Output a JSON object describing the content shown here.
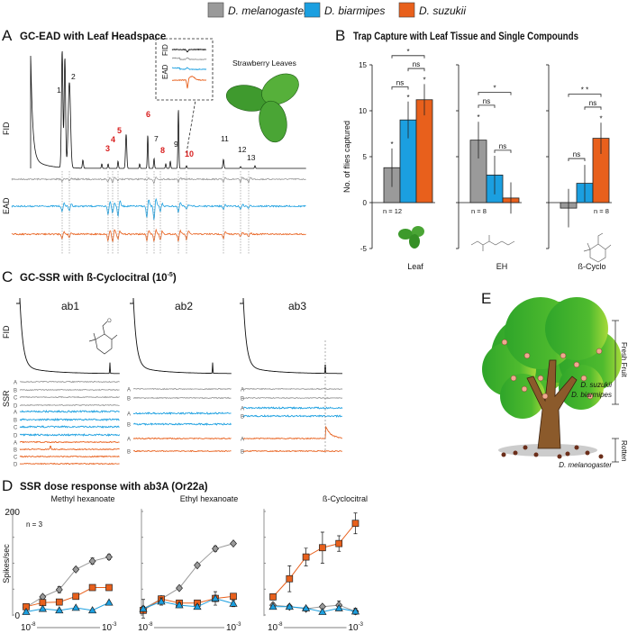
{
  "legend": [
    {
      "label": "D. melanogaster",
      "color": "#9a9a9a"
    },
    {
      "label": "D. biarmipes",
      "color": "#1b9fe0"
    },
    {
      "label": "D. suzukii",
      "color": "#e8601c"
    }
  ],
  "panelA": {
    "letter": "A",
    "title": "GC-EAD with Leaf Headspace",
    "fid_label": "FID",
    "ead_label": "EAD",
    "inset_fid_label": "FID",
    "inset_ead_label": "EAD",
    "image_caption": "Strawberry Leaves",
    "peaks": [
      "1",
      "2",
      "3",
      "4",
      "5",
      "6",
      "7",
      "8",
      "9",
      "10",
      "11",
      "12",
      "13"
    ],
    "highlighted_peaks": [
      "3",
      "4",
      "5",
      "6",
      "8",
      "10"
    ]
  },
  "panelB": {
    "letter": "B",
    "title": "Trap Capture with Leaf Tissue and Single Compounds"
  },
  "panelC": {
    "letter": "C",
    "title": "GC-SSR with ß-Cyclocitral (10",
    "title_exponent": "-5",
    "title_close": ")",
    "fid_label": "FID",
    "ssr_label": "SSR",
    "sensilla": [
      {
        "name": "ab1",
        "neurons": [
          "A",
          "B",
          "C",
          "D"
        ]
      },
      {
        "name": "ab2",
        "neurons": [
          "A",
          "B"
        ]
      },
      {
        "name": "ab3",
        "neurons": [
          "A",
          "B"
        ]
      }
    ]
  },
  "panelD": {
    "letter": "D",
    "title": "SSR dose response with ab3A (Or22a)"
  },
  "panelE": {
    "letter": "E",
    "fresh_label": "Fresh Fruit",
    "rotten_label": "Rotten",
    "fresh_species": [
      "D. suzukii",
      "D. biarmipes"
    ],
    "rotten_species": [
      "D. melanogaster"
    ]
  },
  "chart_data": [
    {
      "type": "bar",
      "title": "Trap Capture with Leaf Tissue and Single Compounds",
      "ylabel": "No. of flies captured",
      "ylim": [
        -5,
        15
      ],
      "yticks": [
        "15",
        "10",
        "5",
        "0",
        "-5"
      ],
      "categories": [
        "Leaf",
        "EH",
        "ß-Cyclo"
      ],
      "n_labels": [
        "n = 12",
        "n = 8",
        "n = 8"
      ],
      "series": [
        {
          "name": "D. melanogaster",
          "values": [
            3.8,
            6.8,
            -0.6
          ],
          "errors": [
            2.1,
            2.0,
            2.1
          ],
          "stars": [
            "*",
            "*",
            ""
          ]
        },
        {
          "name": "D. biarmipes",
          "values": [
            9.0,
            3.0,
            2.1
          ],
          "errors": [
            2.0,
            2.1,
            2.0
          ],
          "stars": [
            "*",
            "",
            ""
          ]
        },
        {
          "name": "D. suzukii",
          "values": [
            11.2,
            0.5,
            7.0
          ],
          "errors": [
            1.7,
            1.7,
            1.7
          ],
          "stars": [
            "*",
            "",
            "*"
          ]
        }
      ],
      "comparisons": [
        [
          {
            "pair": [
              0,
              2
            ],
            "label": "*"
          },
          {
            "pair": [
              1,
              2
            ],
            "label": "ns"
          },
          {
            "pair": [
              0,
              1
            ],
            "label": "ns"
          }
        ],
        [
          {
            "pair": [
              0,
              2
            ],
            "label": "*"
          },
          {
            "pair": [
              0,
              1
            ],
            "label": "ns"
          },
          {
            "pair": [
              1,
              2
            ],
            "label": "ns"
          }
        ],
        [
          {
            "pair": [
              0,
              2
            ],
            "label": "* *"
          },
          {
            "pair": [
              1,
              2
            ],
            "label": "ns"
          },
          {
            "pair": [
              0,
              1
            ],
            "label": "ns"
          }
        ]
      ]
    },
    {
      "type": "line",
      "title": "Methyl hexanoate",
      "ylabel": "Spikes/sec",
      "annotation": "n = 3",
      "x_log10": [
        -8,
        -7,
        -6,
        -5,
        -4,
        -3
      ],
      "xtick_labels": [
        "10",
        "-8",
        "10",
        "-3"
      ],
      "ylim": [
        0,
        200
      ],
      "ytick_labels": [
        "200",
        "0"
      ],
      "series": [
        {
          "name": "D. melanogaster",
          "marker": "diamond",
          "values": [
            15,
            35,
            49,
            88,
            104,
            112
          ],
          "errors": [
            4,
            4,
            6,
            4,
            6,
            5
          ]
        },
        {
          "name": "D. suzukii",
          "marker": "square",
          "values": [
            16,
            24,
            25,
            36,
            53,
            53
          ],
          "errors": [
            3,
            4,
            3,
            3,
            3,
            3
          ]
        },
        {
          "name": "D. biarmipes",
          "marker": "triangle",
          "values": [
            6,
            12,
            9,
            14,
            9,
            24
          ],
          "errors": [
            2,
            2,
            2,
            2,
            2,
            2
          ]
        }
      ]
    },
    {
      "type": "line",
      "title": "Ethyl hexanoate",
      "x_log10": [
        -8,
        -7,
        -6,
        -5,
        -4,
        -3
      ],
      "xtick_labels": [
        "10",
        "-8",
        "10",
        "-3"
      ],
      "ylim": [
        0,
        200
      ],
      "series": [
        {
          "name": "D. melanogaster",
          "marker": "diamond",
          "values": [
            12,
            31,
            52,
            96,
            128,
            138
          ],
          "errors": [
            5,
            3,
            3,
            3,
            5,
            3
          ]
        },
        {
          "name": "D. suzukii",
          "marker": "square",
          "values": [
            9,
            31,
            23,
            23,
            32,
            36
          ],
          "errors": [
            3,
            3,
            3,
            3,
            6,
            5
          ]
        },
        {
          "name": "D. biarmipes",
          "marker": "triangle",
          "values": [
            12,
            26,
            19,
            16,
            32,
            22
          ],
          "errors": [
            18,
            7,
            4,
            4,
            13,
            6
          ]
        }
      ]
    },
    {
      "type": "line",
      "title": "ß-Cyclocitral",
      "x_log10": [
        -8,
        -7,
        -6,
        -5,
        -4,
        -3
      ],
      "xtick_labels": [
        "10",
        "-8",
        "10",
        "-3"
      ],
      "ylim": [
        0,
        200
      ],
      "series": [
        {
          "name": "D. suzukii",
          "marker": "square",
          "values": [
            35,
            70,
            112,
            130,
            138,
            177
          ],
          "errors": [
            6,
            25,
            17,
            30,
            15,
            20
          ]
        },
        {
          "name": "D. melanogaster",
          "marker": "diamond",
          "values": [
            19,
            16,
            12,
            16,
            19,
            7
          ],
          "errors": [
            4,
            3,
            3,
            3,
            8,
            6
          ]
        },
        {
          "name": "D. biarmipes",
          "marker": "triangle",
          "values": [
            16,
            16,
            13,
            6,
            13,
            7
          ],
          "errors": [
            2,
            2,
            2,
            2,
            2,
            2
          ]
        }
      ]
    }
  ]
}
